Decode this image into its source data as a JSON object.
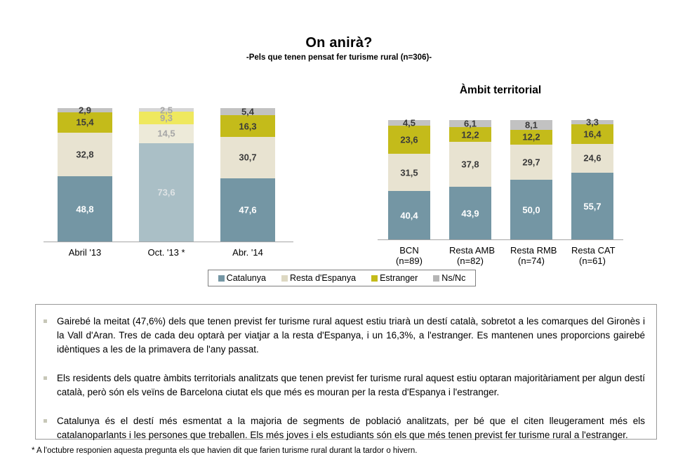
{
  "header": {
    "title": "On anirà?",
    "subtitle": "-Pels que tenen pensat fer turisme rural (n=306)-"
  },
  "palette": {
    "catalunya": "#7496a4",
    "resta_espanya": "#e8e3d1",
    "estranger": "#c4bb1a",
    "nsnc": "#c2c2c2",
    "muted_catalunya": "#aabfc6",
    "muted_resta_espanya": "#edead9",
    "muted_estranger": "#efe85e",
    "muted_nsnc": "#d6d6d6",
    "label_dark": "#3a3a3a",
    "label_light": "#ffffff",
    "label_muted": "#a6a6a6",
    "label_muted_light": "#dfe3e5",
    "axis_line": "#a6a6a6"
  },
  "chart_data": [
    {
      "type": "bar",
      "stacked": true,
      "percent": true,
      "title": "",
      "categories": [
        "Abril '13",
        "Oct. '13 *",
        "Abr. '14"
      ],
      "category_sublabels": [
        "",
        "",
        ""
      ],
      "series": [
        {
          "name": "Catalunya",
          "values": [
            48.8,
            73.6,
            47.6
          ]
        },
        {
          "name": "Resta d'Espanya",
          "values": [
            32.8,
            14.5,
            30.7
          ]
        },
        {
          "name": "Estranger",
          "values": [
            15.4,
            9.3,
            16.3
          ]
        },
        {
          "name": "Ns/Nc",
          "values": [
            2.9,
            2.5,
            5.4
          ]
        }
      ],
      "muted_columns": [
        1
      ],
      "ylim": [
        0,
        100
      ],
      "grid": false,
      "legend_position": "bottom"
    },
    {
      "type": "bar",
      "stacked": true,
      "percent": true,
      "title": "Àmbit territorial",
      "categories": [
        "BCN",
        "Resta AMB",
        "Resta RMB",
        "Resta CAT"
      ],
      "category_sublabels": [
        "(n=89)",
        "(n=82)",
        "(n=74)",
        "(n=61)"
      ],
      "series": [
        {
          "name": "Catalunya",
          "values": [
            40.4,
            43.9,
            50.0,
            55.7
          ]
        },
        {
          "name": "Resta d'Espanya",
          "values": [
            31.5,
            37.8,
            29.7,
            24.6
          ]
        },
        {
          "name": "Estranger",
          "values": [
            23.6,
            12.2,
            12.2,
            16.4
          ]
        },
        {
          "name": "Ns/Nc",
          "values": [
            4.5,
            6.1,
            8.1,
            3.3
          ]
        }
      ],
      "muted_columns": [],
      "ylim": [
        0,
        100
      ],
      "grid": false
    }
  ],
  "legend": {
    "items": [
      {
        "label": "Catalunya",
        "color": "#7496a4"
      },
      {
        "label": "Resta d'Espanya",
        "color": "#ddd8c2"
      },
      {
        "label": "Estranger",
        "color": "#c4bb1a"
      },
      {
        "label": "Ns/Nc",
        "color": "#b5b5b5"
      }
    ]
  },
  "bullets": [
    "Gairebé la meitat (47,6%) dels que tenen previst fer turisme rural aquest estiu triarà un destí català, sobretot a les comarques del Gironès i la Vall d'Aran. Tres de cada deu optarà per viatjar a la resta d'Espanya, i un 16,3%, a l'estranger. Es mantenen unes proporcions gairebé idèntiques a les de la primavera de l'any passat.",
    "Els residents dels quatre àmbits territorials analitzats que tenen previst fer turisme rural aquest estiu optaran majoritàriament per algun destí català, però són els veïns de Barcelona ciutat els que més es mouran per la resta d'Espanya i l'estranger.",
    "Catalunya és el destí més esmentat a la majoria de segments de població analitzats, per bé que el citen lleugerament més els catalanoparlants i les persones que treballen. Els més joves i els estudiants són els que més tenen previst fer turisme rural a l'estranger."
  ],
  "footnote": "* A l'octubre responien aquesta pregunta els que havien dit que farien turisme rural durant la tardor o hivern."
}
